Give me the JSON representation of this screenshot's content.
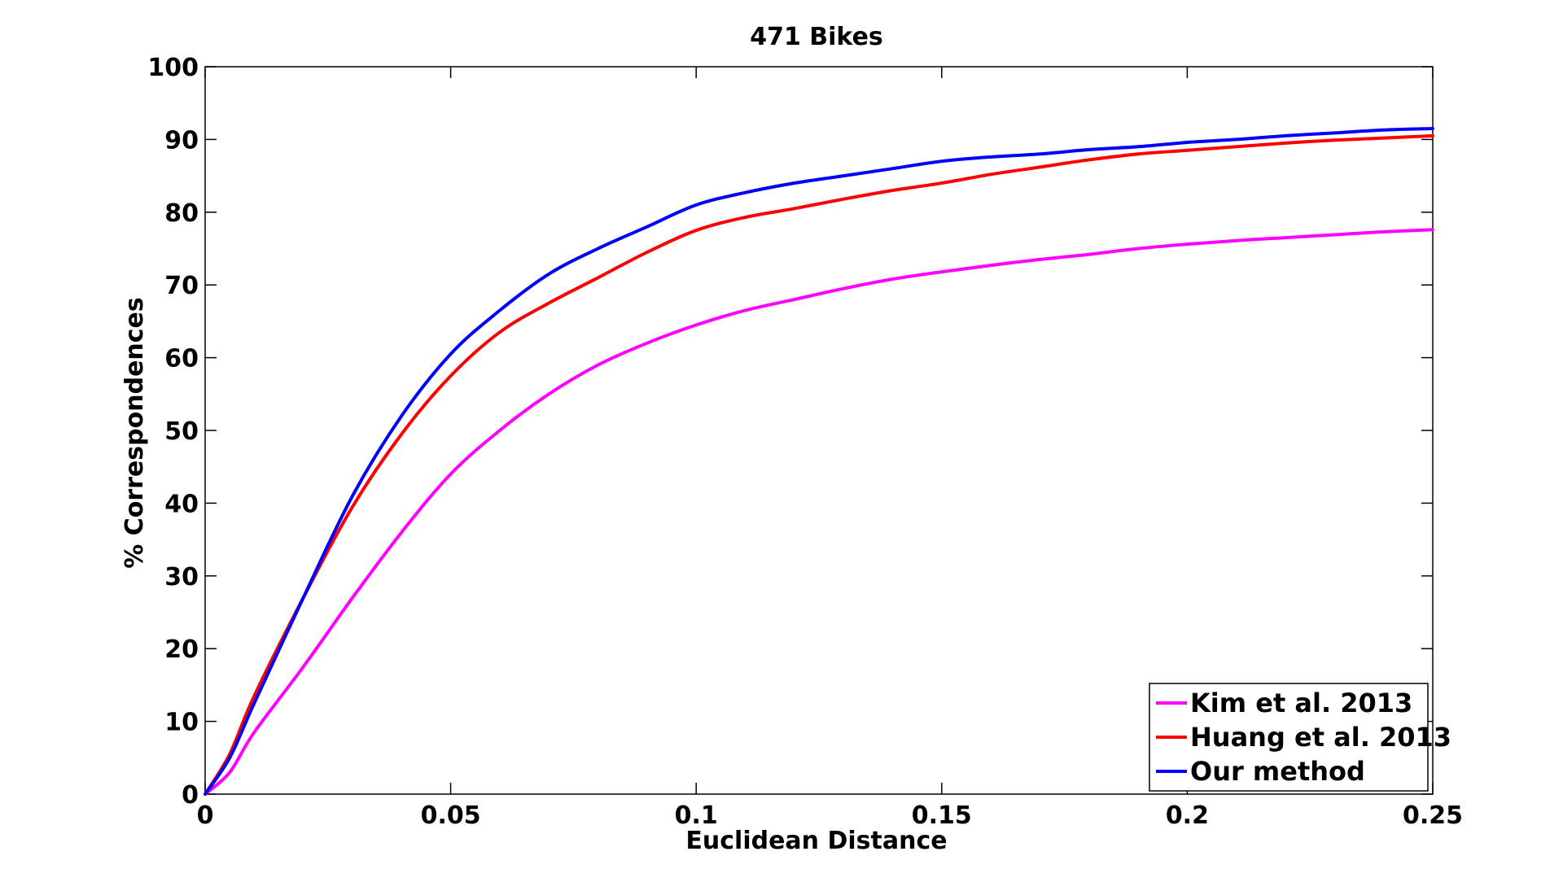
{
  "chart_data": {
    "type": "line",
    "title": "471 Bikes",
    "xlabel": "Euclidean Distance",
    "ylabel": "% Correspondences",
    "xlim": [
      0,
      0.25
    ],
    "ylim": [
      0,
      100
    ],
    "xticks": [
      0,
      0.05,
      0.1,
      0.15,
      0.2,
      0.25
    ],
    "xtick_labels": [
      "0",
      "0.05",
      "0.1",
      "0.15",
      "0.2",
      "0.25"
    ],
    "yticks": [
      0,
      10,
      20,
      30,
      40,
      50,
      60,
      70,
      80,
      90,
      100
    ],
    "ytick_labels": [
      "0",
      "10",
      "20",
      "30",
      "40",
      "50",
      "60",
      "70",
      "80",
      "90",
      "100"
    ],
    "grid": false,
    "legend_position": "bottom-right",
    "x": [
      0,
      0.005,
      0.01,
      0.02,
      0.03,
      0.04,
      0.05,
      0.06,
      0.07,
      0.08,
      0.09,
      0.1,
      0.11,
      0.12,
      0.13,
      0.14,
      0.15,
      0.16,
      0.17,
      0.18,
      0.19,
      0.2,
      0.21,
      0.22,
      0.23,
      0.24,
      0.25
    ],
    "series": [
      {
        "name": "Kim et al. 2013",
        "color": "#ff00ff",
        "values": [
          0,
          3,
          8.5,
          17.5,
          27,
          36,
          44,
          50,
          55,
          59,
          62,
          64.5,
          66.5,
          68,
          69.5,
          70.8,
          71.8,
          72.7,
          73.5,
          74.2,
          75,
          75.6,
          76.1,
          76.5,
          76.9,
          77.3,
          77.6
        ]
      },
      {
        "name": "Huang et al. 2013",
        "color": "#ff0000",
        "values": [
          0,
          5.5,
          13.5,
          27,
          39.5,
          49.5,
          57.5,
          63.5,
          67.5,
          71,
          74.5,
          77.5,
          79.3,
          80.5,
          81.8,
          83,
          84,
          85.2,
          86.2,
          87.2,
          88,
          88.5,
          89,
          89.5,
          89.9,
          90.2,
          90.5
        ]
      },
      {
        "name": "Our method",
        "color": "#0000ff",
        "values": [
          0,
          5,
          12.5,
          27,
          41,
          52,
          60.5,
          66.5,
          71.5,
          75,
          78,
          81,
          82.7,
          84,
          85,
          86,
          87,
          87.6,
          88,
          88.6,
          89,
          89.6,
          90,
          90.5,
          90.9,
          91.3,
          91.5
        ]
      }
    ]
  }
}
